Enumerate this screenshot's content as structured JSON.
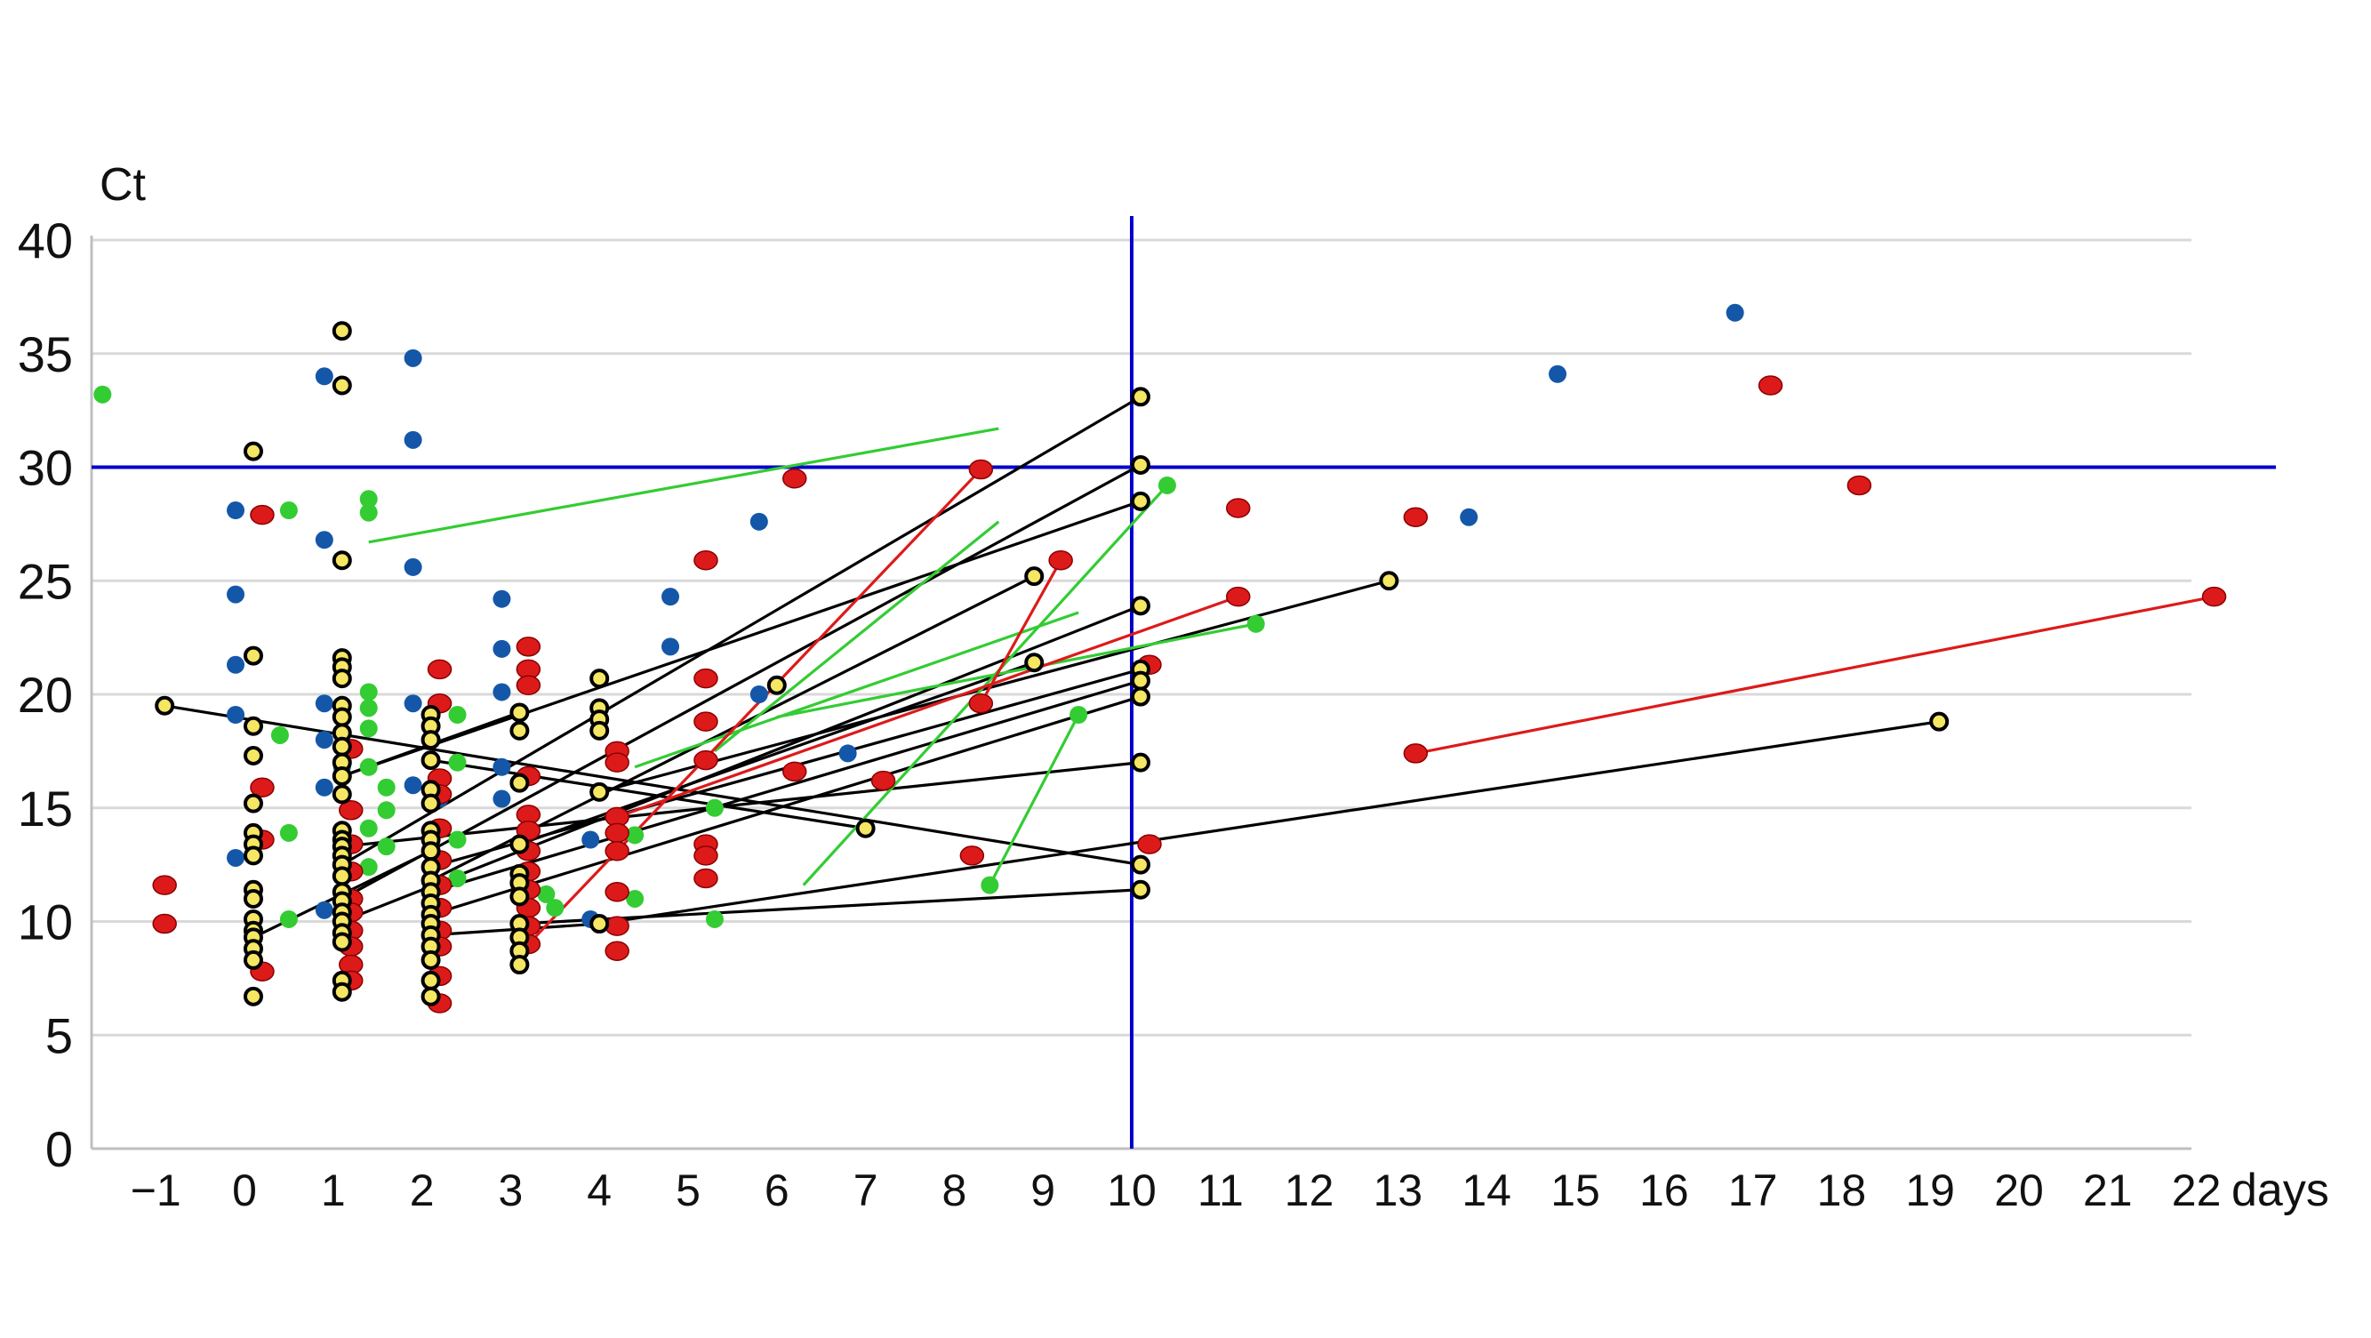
{
  "chart_data": {
    "type": "scatter",
    "title": "",
    "ylabel": "Ct",
    "xlabel": "days",
    "xlim": [
      -1.9,
      22.3
    ],
    "ylim": [
      0,
      40
    ],
    "y_ticks": [
      0,
      5,
      10,
      15,
      20,
      25,
      30,
      35,
      40
    ],
    "x_ticks": [
      -1,
      0,
      1,
      2,
      3,
      4,
      5,
      6,
      7,
      8,
      9,
      10,
      11,
      12,
      13,
      14,
      15,
      16,
      17,
      18,
      19,
      20,
      21,
      22
    ],
    "x_tick_labels": [
      "−1",
      "0",
      "1",
      "2",
      "3",
      "4",
      "5",
      "6",
      "7",
      "8",
      "9",
      "10",
      "11",
      "12",
      "13",
      "14",
      "15",
      "16",
      "17",
      "18",
      "19",
      "20",
      "21",
      "22"
    ],
    "grid": "horizontal",
    "reference_lines": [
      {
        "orientation": "vertical",
        "value": 10,
        "color": "#0000cc"
      },
      {
        "orientation": "horizontal",
        "value": 30,
        "color": "#0000cc"
      }
    ],
    "colors": {
      "blue": "#1457a8",
      "green": "#33cc33",
      "red": "#dd1a1a",
      "yellow": "#f5e663",
      "black": "#000000",
      "grid": "#d9d9d9"
    },
    "series": [
      {
        "color": "blue",
        "points": [
          [
            -0.1,
            28.1
          ],
          [
            -0.1,
            24.4
          ],
          [
            -0.1,
            21.3
          ],
          [
            -0.1,
            19.1
          ],
          [
            -0.1,
            12.8
          ],
          [
            0.9,
            34.0
          ],
          [
            0.9,
            26.8
          ],
          [
            0.9,
            19.6
          ],
          [
            0.9,
            18.0
          ],
          [
            0.9,
            15.9
          ],
          [
            0.9,
            10.5
          ],
          [
            1.1,
            16.8
          ],
          [
            1.9,
            34.8
          ],
          [
            1.9,
            31.2
          ],
          [
            1.9,
            25.6
          ],
          [
            1.9,
            19.6
          ],
          [
            1.9,
            16.0
          ],
          [
            2.2,
            15.4
          ],
          [
            2.9,
            24.2
          ],
          [
            2.9,
            22.0
          ],
          [
            2.9,
            20.1
          ],
          [
            2.9,
            16.8
          ],
          [
            2.9,
            15.4
          ],
          [
            3.9,
            13.6
          ],
          [
            3.9,
            10.1
          ],
          [
            4.8,
            24.3
          ],
          [
            4.8,
            22.1
          ],
          [
            5.8,
            27.6
          ],
          [
            5.8,
            20.0
          ],
          [
            6.8,
            17.4
          ],
          [
            13.8,
            27.8
          ],
          [
            14.8,
            34.1
          ],
          [
            16.8,
            36.8
          ]
        ]
      },
      {
        "color": "green",
        "points": [
          [
            -1.6,
            33.2
          ],
          [
            0.4,
            18.2
          ],
          [
            0.5,
            28.1
          ],
          [
            0.5,
            13.9
          ],
          [
            0.5,
            10.1
          ],
          [
            1.4,
            28.6
          ],
          [
            1.4,
            28.0
          ],
          [
            1.4,
            20.1
          ],
          [
            1.4,
            19.4
          ],
          [
            1.4,
            18.5
          ],
          [
            1.4,
            16.8
          ],
          [
            1.6,
            15.9
          ],
          [
            1.6,
            14.9
          ],
          [
            1.4,
            14.1
          ],
          [
            1.6,
            13.3
          ],
          [
            1.4,
            12.4
          ],
          [
            2.4,
            19.1
          ],
          [
            2.4,
            17.0
          ],
          [
            2.4,
            13.6
          ],
          [
            2.4,
            11.9
          ],
          [
            3.4,
            11.2
          ],
          [
            3.5,
            10.6
          ],
          [
            4.4,
            13.8
          ],
          [
            4.4,
            11.0
          ],
          [
            5.3,
            15.0
          ],
          [
            5.3,
            10.1
          ],
          [
            8.4,
            11.6
          ],
          [
            9.4,
            19.1
          ],
          [
            10.4,
            29.2
          ],
          [
            11.4,
            23.1
          ]
        ]
      },
      {
        "color": "red",
        "points": [
          [
            -0.9,
            11.6
          ],
          [
            -0.9,
            9.9
          ],
          [
            0.2,
            27.9
          ],
          [
            0.2,
            15.9
          ],
          [
            0.2,
            13.6
          ],
          [
            0.2,
            7.8
          ],
          [
            1.2,
            17.6
          ],
          [
            1.2,
            14.9
          ],
          [
            1.2,
            13.4
          ],
          [
            1.2,
            12.2
          ],
          [
            1.2,
            11.0
          ],
          [
            1.2,
            10.4
          ],
          [
            1.2,
            9.6
          ],
          [
            1.2,
            8.9
          ],
          [
            1.2,
            8.1
          ],
          [
            1.2,
            7.4
          ],
          [
            2.2,
            21.1
          ],
          [
            2.2,
            19.6
          ],
          [
            2.2,
            16.3
          ],
          [
            2.2,
            15.6
          ],
          [
            2.2,
            14.1
          ],
          [
            2.2,
            12.7
          ],
          [
            2.2,
            11.6
          ],
          [
            2.2,
            10.6
          ],
          [
            2.2,
            9.6
          ],
          [
            2.2,
            8.9
          ],
          [
            2.2,
            7.6
          ],
          [
            2.2,
            6.4
          ],
          [
            3.2,
            22.1
          ],
          [
            3.2,
            21.1
          ],
          [
            3.2,
            20.4
          ],
          [
            3.2,
            16.4
          ],
          [
            3.2,
            14.7
          ],
          [
            3.2,
            14.0
          ],
          [
            3.2,
            13.1
          ],
          [
            3.2,
            12.2
          ],
          [
            3.2,
            11.4
          ],
          [
            3.2,
            10.6
          ],
          [
            3.2,
            9.8
          ],
          [
            3.2,
            9.0
          ],
          [
            4.2,
            17.5
          ],
          [
            4.2,
            17.0
          ],
          [
            4.2,
            14.6
          ],
          [
            4.2,
            13.9
          ],
          [
            4.2,
            13.1
          ],
          [
            4.2,
            11.3
          ],
          [
            4.2,
            9.8
          ],
          [
            4.2,
            8.7
          ],
          [
            5.2,
            25.9
          ],
          [
            5.2,
            20.7
          ],
          [
            5.2,
            18.8
          ],
          [
            5.2,
            17.1
          ],
          [
            5.2,
            13.4
          ],
          [
            5.2,
            12.9
          ],
          [
            5.2,
            11.9
          ],
          [
            6.2,
            29.5
          ],
          [
            6.2,
            16.6
          ],
          [
            7.2,
            16.2
          ],
          [
            8.2,
            12.9
          ],
          [
            8.3,
            29.9
          ],
          [
            8.3,
            19.6
          ],
          [
            9.2,
            25.9
          ],
          [
            10.2,
            21.3
          ],
          [
            10.2,
            13.4
          ],
          [
            11.2,
            28.2
          ],
          [
            11.2,
            24.3
          ],
          [
            13.2,
            27.8
          ],
          [
            13.2,
            17.4
          ],
          [
            17.2,
            33.6
          ],
          [
            18.2,
            29.2
          ],
          [
            22.2,
            24.3
          ]
        ]
      },
      {
        "color": "yellow",
        "points": [
          [
            -0.9,
            19.5
          ],
          [
            0.1,
            30.7
          ],
          [
            0.1,
            21.7
          ],
          [
            0.1,
            18.6
          ],
          [
            0.1,
            17.3
          ],
          [
            0.1,
            15.2
          ],
          [
            0.1,
            13.9
          ],
          [
            0.1,
            13.4
          ],
          [
            0.1,
            12.9
          ],
          [
            0.1,
            11.4
          ],
          [
            0.1,
            11.0
          ],
          [
            0.1,
            10.1
          ],
          [
            0.1,
            9.6
          ],
          [
            0.1,
            9.3
          ],
          [
            0.1,
            8.8
          ],
          [
            0.1,
            8.3
          ],
          [
            0.1,
            6.7
          ],
          [
            1.1,
            36.0
          ],
          [
            1.1,
            33.6
          ],
          [
            1.1,
            25.9
          ],
          [
            1.1,
            21.6
          ],
          [
            1.1,
            21.2
          ],
          [
            1.1,
            20.7
          ],
          [
            1.1,
            19.5
          ],
          [
            1.1,
            19.0
          ],
          [
            1.1,
            18.3
          ],
          [
            1.1,
            17.7
          ],
          [
            1.1,
            17.0
          ],
          [
            1.1,
            16.4
          ],
          [
            1.1,
            15.6
          ],
          [
            1.1,
            14.0
          ],
          [
            1.1,
            13.6
          ],
          [
            1.1,
            13.3
          ],
          [
            1.1,
            12.9
          ],
          [
            1.1,
            12.5
          ],
          [
            1.1,
            12.0
          ],
          [
            1.1,
            11.3
          ],
          [
            1.1,
            10.9
          ],
          [
            1.1,
            10.4
          ],
          [
            1.1,
            10.0
          ],
          [
            1.1,
            9.5
          ],
          [
            1.1,
            9.1
          ],
          [
            1.1,
            7.4
          ],
          [
            1.1,
            6.9
          ],
          [
            2.1,
            19.1
          ],
          [
            2.1,
            18.6
          ],
          [
            2.1,
            18.0
          ],
          [
            2.1,
            17.1
          ],
          [
            2.1,
            15.8
          ],
          [
            2.1,
            15.2
          ],
          [
            2.1,
            14.0
          ],
          [
            2.1,
            13.6
          ],
          [
            2.1,
            13.1
          ],
          [
            2.1,
            12.4
          ],
          [
            2.1,
            11.8
          ],
          [
            2.1,
            11.3
          ],
          [
            2.1,
            10.8
          ],
          [
            2.1,
            10.3
          ],
          [
            2.1,
            9.9
          ],
          [
            2.1,
            9.4
          ],
          [
            2.1,
            8.9
          ],
          [
            2.1,
            8.3
          ],
          [
            2.1,
            7.4
          ],
          [
            2.1,
            6.7
          ],
          [
            3.1,
            19.2
          ],
          [
            3.1,
            18.4
          ],
          [
            3.1,
            16.1
          ],
          [
            3.1,
            13.4
          ],
          [
            3.1,
            12.1
          ],
          [
            3.1,
            11.7
          ],
          [
            3.1,
            11.1
          ],
          [
            3.1,
            9.9
          ],
          [
            3.1,
            9.3
          ],
          [
            3.1,
            8.7
          ],
          [
            3.1,
            8.1
          ],
          [
            4.0,
            20.7
          ],
          [
            4.0,
            19.4
          ],
          [
            4.0,
            18.9
          ],
          [
            4.0,
            18.4
          ],
          [
            4.0,
            15.7
          ],
          [
            4.0,
            9.9
          ],
          [
            6.0,
            20.4
          ],
          [
            7.0,
            14.1
          ],
          [
            8.9,
            25.2
          ],
          [
            8.9,
            21.4
          ],
          [
            10.1,
            33.1
          ],
          [
            10.1,
            30.1
          ],
          [
            10.1,
            28.5
          ],
          [
            10.1,
            23.9
          ],
          [
            10.1,
            21.1
          ],
          [
            10.1,
            20.6
          ],
          [
            10.1,
            19.9
          ],
          [
            10.1,
            17.0
          ],
          [
            10.1,
            12.5
          ],
          [
            10.1,
            11.4
          ],
          [
            12.9,
            25.0
          ],
          [
            19.1,
            18.8
          ]
        ]
      }
    ],
    "connections": [
      {
        "color": "black",
        "from": [
          -0.9,
          19.5
        ],
        "to": [
          10.1,
          12.5
        ]
      },
      {
        "color": "black",
        "from": [
          1.1,
          12.5
        ],
        "to": [
          10.1,
          33.1
        ]
      },
      {
        "color": "black",
        "from": [
          1.1,
          11.0
        ],
        "to": [
          10.1,
          30.1
        ]
      },
      {
        "color": "black",
        "from": [
          1.1,
          16.4
        ],
        "to": [
          10.1,
          28.5
        ]
      },
      {
        "color": "black",
        "from": [
          1.1,
          10.0
        ],
        "to": [
          10.1,
          23.9
        ]
      },
      {
        "color": "black",
        "from": [
          2.1,
          12.4
        ],
        "to": [
          10.1,
          21.1
        ]
      },
      {
        "color": "black",
        "from": [
          2.1,
          11.3
        ],
        "to": [
          10.1,
          20.6
        ]
      },
      {
        "color": "black",
        "from": [
          2.1,
          10.3
        ],
        "to": [
          10.1,
          19.9
        ]
      },
      {
        "color": "black",
        "from": [
          1.1,
          13.3
        ],
        "to": [
          10.1,
          17.0
        ]
      },
      {
        "color": "black",
        "from": [
          3.1,
          9.9
        ],
        "to": [
          10.1,
          11.4
        ]
      },
      {
        "color": "black",
        "from": [
          2.1,
          17.1
        ],
        "to": [
          7.0,
          14.1
        ]
      },
      {
        "color": "black",
        "from": [
          2.1,
          11.8
        ],
        "to": [
          8.9,
          25.2
        ]
      },
      {
        "color": "black",
        "from": [
          3.1,
          13.4
        ],
        "to": [
          8.9,
          21.4
        ]
      },
      {
        "color": "black",
        "from": [
          4.0,
          15.7
        ],
        "to": [
          12.9,
          25.0
        ]
      },
      {
        "color": "black",
        "from": [
          0.1,
          9.3
        ],
        "to": [
          2.1,
          13.1
        ]
      },
      {
        "color": "black",
        "from": [
          2.1,
          9.4
        ],
        "to": [
          4.0,
          9.9
        ]
      },
      {
        "color": "black",
        "from": [
          4.0,
          9.9
        ],
        "to": [
          19.1,
          18.8
        ]
      },
      {
        "color": "black",
        "from": [
          3.1,
          19.2
        ],
        "to": [
          1.1,
          16.4
        ]
      },
      {
        "color": "green",
        "from": [
          1.4,
          26.7
        ],
        "to": [
          8.5,
          31.7
        ]
      },
      {
        "color": "green",
        "from": [
          4.4,
          16.8
        ],
        "to": [
          9.4,
          23.6
        ]
      },
      {
        "color": "green",
        "from": [
          5.3,
          17.5
        ],
        "to": [
          8.5,
          27.6
        ]
      },
      {
        "color": "green",
        "from": [
          6.3,
          11.6
        ],
        "to": [
          10.4,
          29.2
        ]
      },
      {
        "color": "green",
        "from": [
          8.4,
          11.6
        ],
        "to": [
          9.4,
          19.1
        ]
      },
      {
        "color": "green",
        "from": [
          6.0,
          19.0
        ],
        "to": [
          11.4,
          23.1
        ]
      },
      {
        "color": "red",
        "from": [
          3.2,
          9.0
        ],
        "to": [
          8.3,
          29.9
        ]
      },
      {
        "color": "red",
        "from": [
          4.2,
          14.6
        ],
        "to": [
          11.2,
          24.3
        ]
      },
      {
        "color": "red",
        "from": [
          8.3,
          19.6
        ],
        "to": [
          9.2,
          25.9
        ]
      },
      {
        "color": "red",
        "from": [
          13.2,
          17.4
        ],
        "to": [
          22.2,
          24.3
        ]
      }
    ]
  }
}
